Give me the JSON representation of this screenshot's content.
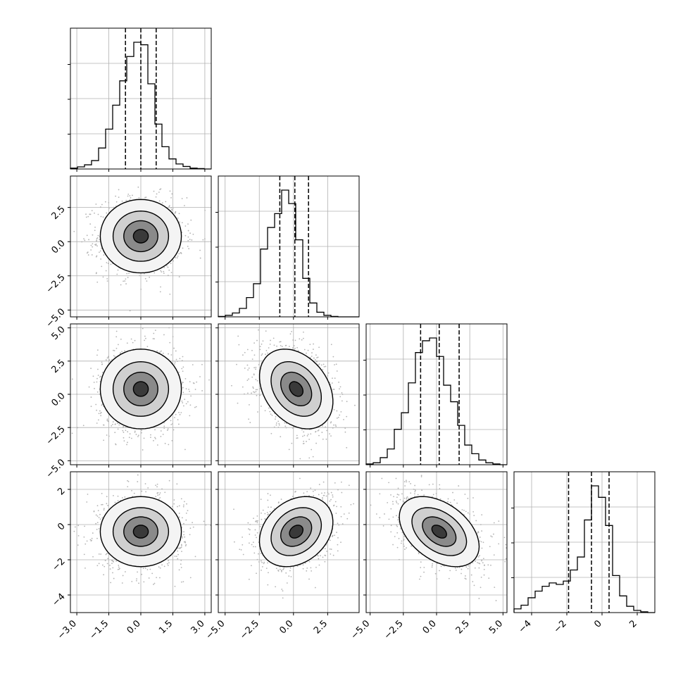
{
  "chart_data": {
    "type": "corner",
    "grid": true,
    "colors": {
      "hist": "#000000",
      "density": "#000000",
      "points": "#b4b4b4",
      "gridline": "#b0b0b0"
    },
    "params": [
      {
        "range": [
          -3.3,
          3.3
        ],
        "ticks": [
          -3.0,
          -1.5,
          0.0,
          1.5,
          3.0
        ],
        "tick_labels": [
          "−3.0",
          "−1.5",
          "0.0",
          "1.5",
          "3.0"
        ]
      },
      {
        "range": [
          -5.5,
          4.8
        ],
        "ticks": [
          -5.0,
          -2.5,
          0.0,
          2.5
        ],
        "tick_labels": [
          "−5.0",
          "−2.5",
          "0.0",
          "2.5"
        ]
      },
      {
        "range": [
          -5.3,
          5.3
        ],
        "ticks": [
          -5.0,
          -2.5,
          0.0,
          2.5,
          5.0
        ],
        "tick_labels": [
          "−5.0",
          "−2.5",
          "0.0",
          "2.5",
          "5.0"
        ]
      },
      {
        "range": [
          -5.0,
          3.0
        ],
        "ticks": [
          -4,
          -2,
          0,
          2
        ],
        "tick_labels": [
          "−4",
          "−2",
          "0",
          "2"
        ]
      }
    ],
    "histograms": [
      {
        "param": 0,
        "bin_edges": [
          -3.3,
          -2.97,
          -2.64,
          -2.31,
          -1.98,
          -1.65,
          -1.32,
          -0.99,
          -0.66,
          -0.33,
          0.0,
          0.33,
          0.66,
          0.99,
          1.32,
          1.65,
          1.98,
          2.31,
          2.64,
          2.97,
          3.3
        ],
        "counts": [
          2,
          5,
          10,
          20,
          50,
          95,
          152,
          210,
          268,
          302,
          296,
          203,
          107,
          53,
          24,
          12,
          6,
          2,
          1,
          0
        ],
        "quantiles": [
          -0.72,
          0.0,
          0.72
        ]
      },
      {
        "param": 1,
        "bin_edges": [
          -5.5,
          -4.985,
          -4.47,
          -3.955,
          -3.44,
          -2.925,
          -2.41,
          -1.895,
          -1.38,
          -0.865,
          -0.35,
          0.165,
          0.68,
          1.195,
          1.71,
          2.225,
          2.74,
          3.255,
          3.77,
          4.285,
          4.8
        ],
        "counts": [
          1,
          4,
          10,
          22,
          50,
          86,
          176,
          232,
          268,
          329,
          294,
          200,
          100,
          36,
          12,
          4,
          1,
          0,
          0,
          0
        ],
        "quantiles": [
          -1.0,
          0.1,
          1.1
        ]
      },
      {
        "param": 2,
        "bin_edges": [
          -5.3,
          -4.77,
          -4.24,
          -3.71,
          -3.18,
          -2.65,
          -2.12,
          -1.59,
          -1.06,
          -0.53,
          0.0,
          0.53,
          1.06,
          1.59,
          2.12,
          2.65,
          3.18,
          3.71,
          4.24,
          4.77,
          5.3
        ],
        "counts": [
          2,
          5,
          18,
          40,
          90,
          132,
          208,
          285,
          315,
          322,
          275,
          202,
          160,
          100,
          50,
          28,
          12,
          5,
          2,
          0
        ],
        "quantiles": [
          -1.2,
          0.2,
          1.7
        ]
      },
      {
        "param": 3,
        "bin_edges": [
          -5.0,
          -4.6,
          -4.2,
          -3.8,
          -3.4,
          -3.0,
          -2.6,
          -2.2,
          -1.8,
          -1.4,
          -1.0,
          -0.6,
          -0.2,
          0.2,
          0.6,
          1.0,
          1.4,
          1.8,
          2.2,
          2.6,
          3.0
        ],
        "counts": [
          10,
          20,
          40,
          58,
          71,
          80,
          76,
          85,
          115,
          150,
          250,
          342,
          311,
          235,
          100,
          45,
          17,
          6,
          2,
          0
        ],
        "quantiles": [
          -1.9,
          -0.6,
          0.4
        ]
      }
    ],
    "pairs": [
      {
        "x": 0,
        "y": 1,
        "cov": [
          [
            1,
            0
          ],
          [
            0,
            2.0
          ]
        ],
        "center": [
          0,
          0.4
        ]
      },
      {
        "x": 0,
        "y": 2,
        "cov": [
          [
            1,
            0
          ],
          [
            0,
            2.5
          ]
        ],
        "center": [
          0,
          0.4
        ]
      },
      {
        "x": 1,
        "y": 2,
        "cov": [
          [
            2,
            -0.7
          ],
          [
            -0.7,
            2.5
          ]
        ],
        "center": [
          0.2,
          0.4
        ]
      },
      {
        "x": 0,
        "y": 3,
        "cov": [
          [
            1,
            0
          ],
          [
            0,
            1.1
          ]
        ],
        "center": [
          0,
          -0.4
        ]
      },
      {
        "x": 1,
        "y": 3,
        "cov": [
          [
            2,
            0.4
          ],
          [
            0.4,
            1.1
          ]
        ],
        "center": [
          0.2,
          -0.4
        ]
      },
      {
        "x": 2,
        "y": 3,
        "cov": [
          [
            2.5,
            -0.7
          ],
          [
            -0.7,
            1.1
          ]
        ],
        "center": [
          0.2,
          -0.4
        ]
      }
    ]
  }
}
